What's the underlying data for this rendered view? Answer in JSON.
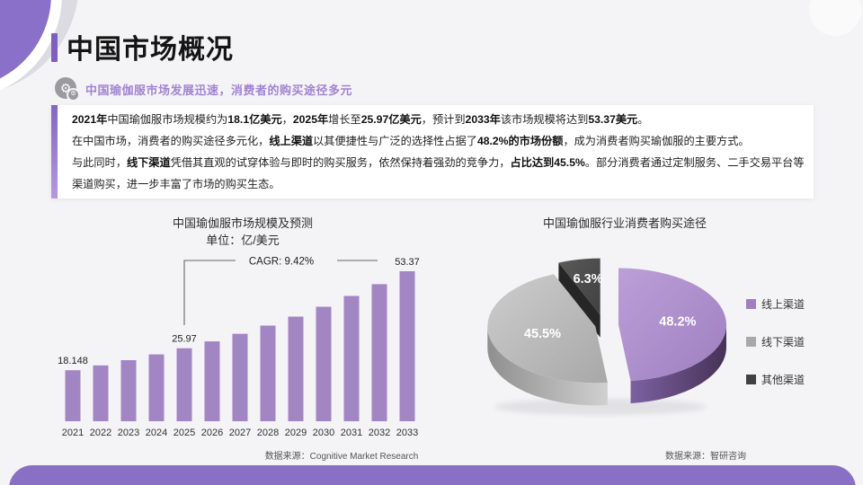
{
  "page": {
    "background": "#f4f3f6",
    "accent": "#7e5ec1",
    "footer_color": "#8a70c4"
  },
  "header": {
    "title": "中国市场概况",
    "subtitle": "中国瑜伽服市场发展迅速，消费者的购买途径多元",
    "subtitle_icon": "gear-icon"
  },
  "infobox": {
    "lines": [
      [
        {
          "t": "2021年",
          "b": 1
        },
        {
          "t": "中国瑜伽服市场规模约为",
          "b": 0
        },
        {
          "t": "18.1亿美元",
          "b": 1
        },
        {
          "t": "，",
          "b": 0
        },
        {
          "t": "2025年",
          "b": 1
        },
        {
          "t": "增长至",
          "b": 0
        },
        {
          "t": "25.97亿美元",
          "b": 1
        },
        {
          "t": "，预计到",
          "b": 0
        },
        {
          "t": "2033年",
          "b": 1
        },
        {
          "t": "该市场规模将达到",
          "b": 0
        },
        {
          "t": "53.37美元",
          "b": 1
        },
        {
          "t": "。",
          "b": 0
        }
      ],
      [
        {
          "t": "在中国市场，消费者的购买途径多元化，",
          "b": 0
        },
        {
          "t": "线上渠道",
          "b": 1
        },
        {
          "t": "以其便捷性与广泛的选择性占据了",
          "b": 0
        },
        {
          "t": "48.2%的市场份额",
          "b": 1
        },
        {
          "t": "，成为消费者购买瑜伽服的主要方式。",
          "b": 0
        }
      ],
      [
        {
          "t": "与此同时，",
          "b": 0
        },
        {
          "t": "线下渠道",
          "b": 1
        },
        {
          "t": "凭借其直观的试穿体验与即时的购买服务，依然保持着强劲的竞争力，",
          "b": 0
        },
        {
          "t": "占比达到45.5%",
          "b": 1
        },
        {
          "t": "。部分消费者通过定制服务、二手交易平台等",
          "b": 0
        }
      ],
      [
        {
          "t": "渠道购买，进一步丰富了市场的购买生态。",
          "b": 0
        }
      ]
    ]
  },
  "chart_data": [
    {
      "type": "bar",
      "title": "中国瑜伽服市场规模及预测",
      "unit_label": "单位：亿/美元",
      "categories": [
        "2021",
        "2022",
        "2023",
        "2024",
        "2025",
        "2026",
        "2027",
        "2028",
        "2029",
        "2030",
        "2031",
        "2032",
        "2033"
      ],
      "values": [
        18.148,
        19.86,
        21.73,
        23.78,
        25.97,
        28.42,
        31.1,
        34.03,
        37.23,
        40.74,
        44.58,
        48.78,
        53.37
      ],
      "value_labels": [
        {
          "index": 0,
          "text": "18.148"
        },
        {
          "index": 4,
          "text": "25.97"
        },
        {
          "index": 12,
          "text": "53.37"
        }
      ],
      "annotation": "CAGR: 9.42%",
      "bar_color": "#a286c4",
      "ylim": [
        0,
        56
      ],
      "grid": false,
      "source": "数据来源：Cognitive Market Research"
    },
    {
      "type": "pie",
      "style": "3d-exploded",
      "title": "中国瑜伽服行业消费者购买途径",
      "legend_position": "right",
      "slices": [
        {
          "label": "线上渠道",
          "value": 48.2,
          "display": "48.2%",
          "color": "#9f7fc0",
          "color_light": "#bb9fd8",
          "wall_from": "#7c61a2",
          "wall_to": "#463257"
        },
        {
          "label": "线下渠道",
          "value": 45.5,
          "display": "45.5%",
          "color": "#a8a8a8",
          "color_light": "#cdcdcd",
          "wall_from": "#8f8f8f",
          "wall_to": "#d0d0d0"
        },
        {
          "label": "其他渠道",
          "value": 6.3,
          "display": "6.3%",
          "color": "#404040",
          "color_light": "#5a5a5a",
          "wall_from": "#262626",
          "wall_to": "#262626"
        }
      ],
      "source": "数据来源：智研咨询"
    }
  ]
}
